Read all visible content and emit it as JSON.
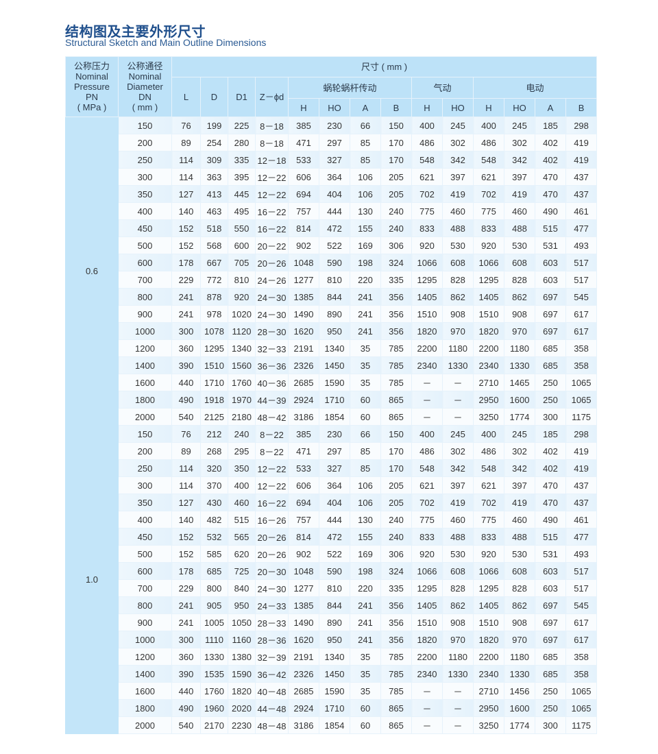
{
  "title": "结构图及主要外形尺寸",
  "subtitle": "Structural Sketch and Main Outline Dimensions",
  "header": {
    "pn": [
      "公称压力",
      "Nominal",
      "Pressure",
      "PN",
      "( MPa )"
    ],
    "dn": [
      "公称通径",
      "Nominal",
      "Diameter",
      "DN",
      "( mm )"
    ],
    "dimensions": "尺寸 ( mm )",
    "basic_cols": [
      "L",
      "D",
      "D1",
      "Z－ϕd"
    ],
    "groups": [
      "蜗轮蜗杆传动",
      "气动",
      "电动"
    ],
    "group_cols": [
      [
        "H",
        "HO",
        "A",
        "B"
      ],
      [
        "H",
        "HO"
      ],
      [
        "H",
        "HO",
        "A",
        "B"
      ]
    ]
  },
  "sections": [
    {
      "pn": "0.6",
      "rows": [
        [
          "150",
          "76",
          "199",
          "225",
          "8－18",
          "385",
          "230",
          "66",
          "150",
          "400",
          "245",
          "400",
          "245",
          "185",
          "298"
        ],
        [
          "200",
          "89",
          "254",
          "280",
          "8－18",
          "471",
          "297",
          "85",
          "170",
          "486",
          "302",
          "486",
          "302",
          "402",
          "419"
        ],
        [
          "250",
          "114",
          "309",
          "335",
          "12－18",
          "533",
          "327",
          "85",
          "170",
          "548",
          "342",
          "548",
          "342",
          "402",
          "419"
        ],
        [
          "300",
          "114",
          "363",
          "395",
          "12－22",
          "606",
          "364",
          "106",
          "205",
          "621",
          "397",
          "621",
          "397",
          "470",
          "437"
        ],
        [
          "350",
          "127",
          "413",
          "445",
          "12－22",
          "694",
          "404",
          "106",
          "205",
          "702",
          "419",
          "702",
          "419",
          "470",
          "437"
        ],
        [
          "400",
          "140",
          "463",
          "495",
          "16－22",
          "757",
          "444",
          "130",
          "240",
          "775",
          "460",
          "775",
          "460",
          "490",
          "461"
        ],
        [
          "450",
          "152",
          "518",
          "550",
          "16－22",
          "814",
          "472",
          "155",
          "240",
          "833",
          "488",
          "833",
          "488",
          "515",
          "477"
        ],
        [
          "500",
          "152",
          "568",
          "600",
          "20－22",
          "902",
          "522",
          "169",
          "306",
          "920",
          "530",
          "920",
          "530",
          "531",
          "493"
        ],
        [
          "600",
          "178",
          "667",
          "705",
          "20－26",
          "1048",
          "590",
          "198",
          "324",
          "1066",
          "608",
          "1066",
          "608",
          "603",
          "517"
        ],
        [
          "700",
          "229",
          "772",
          "810",
          "24－26",
          "1277",
          "810",
          "220",
          "335",
          "1295",
          "828",
          "1295",
          "828",
          "603",
          "517"
        ],
        [
          "800",
          "241",
          "878",
          "920",
          "24－30",
          "1385",
          "844",
          "241",
          "356",
          "1405",
          "862",
          "1405",
          "862",
          "697",
          "545"
        ],
        [
          "900",
          "241",
          "978",
          "1020",
          "24－30",
          "1490",
          "890",
          "241",
          "356",
          "1510",
          "908",
          "1510",
          "908",
          "697",
          "617"
        ],
        [
          "1000",
          "300",
          "1078",
          "1120",
          "28－30",
          "1620",
          "950",
          "241",
          "356",
          "1820",
          "970",
          "1820",
          "970",
          "697",
          "617"
        ],
        [
          "1200",
          "360",
          "1295",
          "1340",
          "32－33",
          "2191",
          "1340",
          "35",
          "785",
          "2200",
          "1180",
          "2200",
          "1180",
          "685",
          "358"
        ],
        [
          "1400",
          "390",
          "1510",
          "1560",
          "36－36",
          "2326",
          "1450",
          "35",
          "785",
          "2340",
          "1330",
          "2340",
          "1330",
          "685",
          "358"
        ],
        [
          "1600",
          "440",
          "1710",
          "1760",
          "40－36",
          "2685",
          "1590",
          "35",
          "785",
          "－",
          "－",
          "2710",
          "1465",
          "250",
          "1065"
        ],
        [
          "1800",
          "490",
          "1918",
          "1970",
          "44－39",
          "2924",
          "1710",
          "60",
          "865",
          "－",
          "－",
          "2950",
          "1600",
          "250",
          "1065"
        ],
        [
          "2000",
          "540",
          "2125",
          "2180",
          "48－42",
          "3186",
          "1854",
          "60",
          "865",
          "－",
          "－",
          "3250",
          "1774",
          "300",
          "1175"
        ]
      ]
    },
    {
      "pn": "1.0",
      "rows": [
        [
          "150",
          "76",
          "212",
          "240",
          "8－22",
          "385",
          "230",
          "66",
          "150",
          "400",
          "245",
          "400",
          "245",
          "185",
          "298"
        ],
        [
          "200",
          "89",
          "268",
          "295",
          "8－22",
          "471",
          "297",
          "85",
          "170",
          "486",
          "302",
          "486",
          "302",
          "402",
          "419"
        ],
        [
          "250",
          "114",
          "320",
          "350",
          "12－22",
          "533",
          "327",
          "85",
          "170",
          "548",
          "342",
          "548",
          "342",
          "402",
          "419"
        ],
        [
          "300",
          "114",
          "370",
          "400",
          "12－22",
          "606",
          "364",
          "106",
          "205",
          "621",
          "397",
          "621",
          "397",
          "470",
          "437"
        ],
        [
          "350",
          "127",
          "430",
          "460",
          "16－22",
          "694",
          "404",
          "106",
          "205",
          "702",
          "419",
          "702",
          "419",
          "470",
          "437"
        ],
        [
          "400",
          "140",
          "482",
          "515",
          "16－26",
          "757",
          "444",
          "130",
          "240",
          "775",
          "460",
          "775",
          "460",
          "490",
          "461"
        ],
        [
          "450",
          "152",
          "532",
          "565",
          "20－26",
          "814",
          "472",
          "155",
          "240",
          "833",
          "488",
          "833",
          "488",
          "515",
          "477"
        ],
        [
          "500",
          "152",
          "585",
          "620",
          "20－26",
          "902",
          "522",
          "169",
          "306",
          "920",
          "530",
          "920",
          "530",
          "531",
          "493"
        ],
        [
          "600",
          "178",
          "685",
          "725",
          "20－30",
          "1048",
          "590",
          "198",
          "324",
          "1066",
          "608",
          "1066",
          "608",
          "603",
          "517"
        ],
        [
          "700",
          "229",
          "800",
          "840",
          "24－30",
          "1277",
          "810",
          "220",
          "335",
          "1295",
          "828",
          "1295",
          "828",
          "603",
          "517"
        ],
        [
          "800",
          "241",
          "905",
          "950",
          "24－33",
          "1385",
          "844",
          "241",
          "356",
          "1405",
          "862",
          "1405",
          "862",
          "697",
          "545"
        ],
        [
          "900",
          "241",
          "1005",
          "1050",
          "28－33",
          "1490",
          "890",
          "241",
          "356",
          "1510",
          "908",
          "1510",
          "908",
          "697",
          "617"
        ],
        [
          "1000",
          "300",
          "1110",
          "1160",
          "28－36",
          "1620",
          "950",
          "241",
          "356",
          "1820",
          "970",
          "1820",
          "970",
          "697",
          "617"
        ],
        [
          "1200",
          "360",
          "1330",
          "1380",
          "32－39",
          "2191",
          "1340",
          "35",
          "785",
          "2200",
          "1180",
          "2200",
          "1180",
          "685",
          "358"
        ],
        [
          "1400",
          "390",
          "1535",
          "1590",
          "36－42",
          "2326",
          "1450",
          "35",
          "785",
          "2340",
          "1330",
          "2340",
          "1330",
          "685",
          "358"
        ],
        [
          "1600",
          "440",
          "1760",
          "1820",
          "40－48",
          "2685",
          "1590",
          "35",
          "785",
          "－",
          "－",
          "2710",
          "1456",
          "250",
          "1065"
        ],
        [
          "1800",
          "490",
          "1960",
          "2020",
          "44－48",
          "2924",
          "1710",
          "60",
          "865",
          "－",
          "－",
          "2950",
          "1600",
          "250",
          "1065"
        ],
        [
          "2000",
          "540",
          "2170",
          "2230",
          "48－48",
          "3186",
          "1854",
          "60",
          "865",
          "－",
          "－",
          "3250",
          "1774",
          "300",
          "1175"
        ]
      ]
    }
  ]
}
